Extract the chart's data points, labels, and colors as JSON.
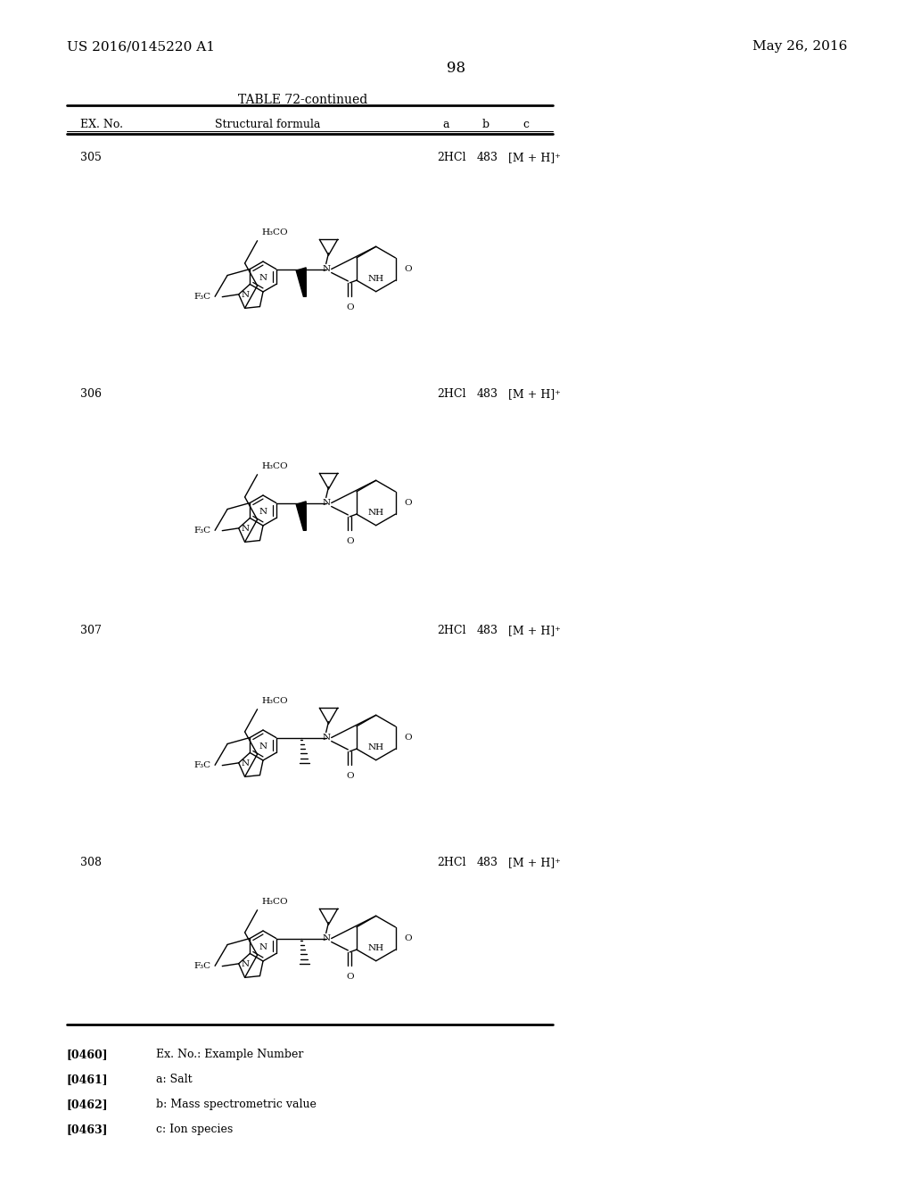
{
  "page_number": "98",
  "patent_number": "US 2016/0145220 A1",
  "patent_date": "May 26, 2016",
  "table_title": "TABLE 72-continued",
  "col_headers": [
    "EX. No.",
    "Structural formula",
    "a",
    "b",
    "c"
  ],
  "background_color": "#ffffff",
  "text_color": "#000000",
  "rows": [
    {
      "ex_no": "305",
      "a": "2HCl",
      "b": "483",
      "c": "[M + H]⁺"
    },
    {
      "ex_no": "306",
      "a": "2HCl",
      "b": "483",
      "c": "[M + H]⁺"
    },
    {
      "ex_no": "307",
      "a": "2HCl",
      "b": "483",
      "c": "[M + H]⁺"
    },
    {
      "ex_no": "308",
      "a": "2HCl",
      "b": "483",
      "c": "[M + H]⁺"
    }
  ],
  "footnotes": [
    {
      "tag": "[0460]",
      "text": "Ex. No.: Example Number"
    },
    {
      "tag": "[0461]",
      "text": "a: Salt"
    },
    {
      "tag": "[0462]",
      "text": "b: Mass spectrometric value"
    },
    {
      "tag": "[0463]",
      "text": "c: Ion species"
    }
  ]
}
